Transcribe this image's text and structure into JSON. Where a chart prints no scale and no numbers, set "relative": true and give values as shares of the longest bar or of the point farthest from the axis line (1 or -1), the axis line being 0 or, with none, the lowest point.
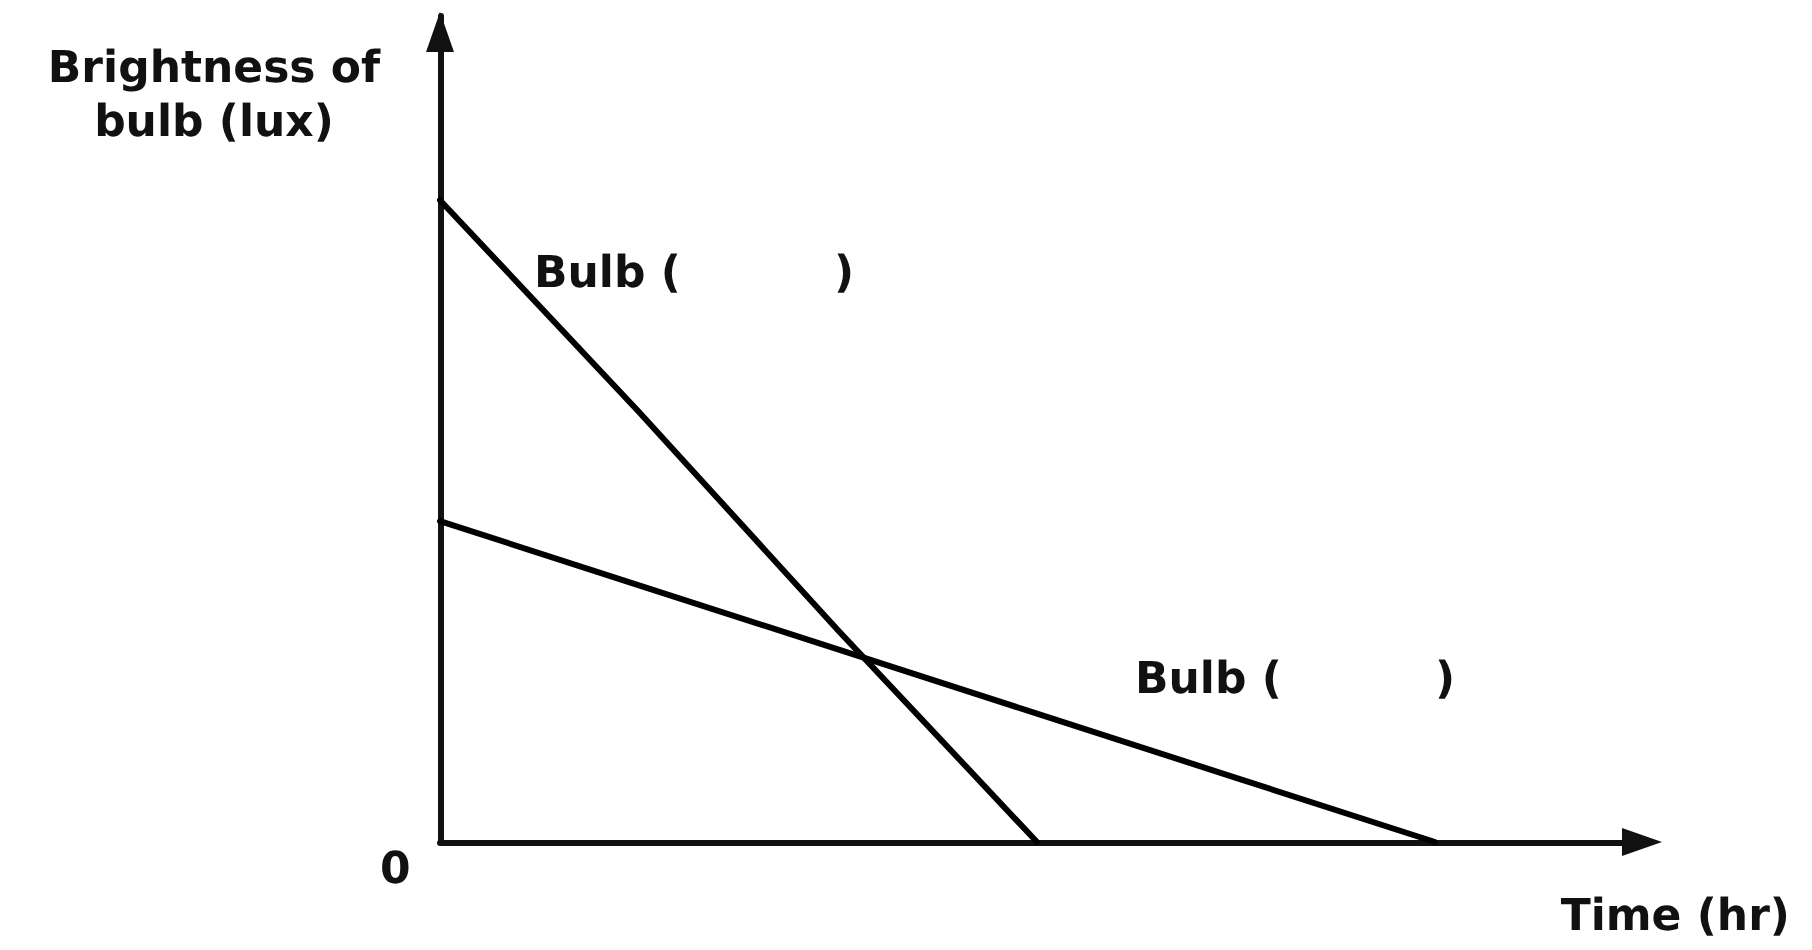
{
  "chart_data": {
    "type": "line",
    "xlabel": "Time (hr)",
    "ylabel": "Brightness of\nbulb (lux)",
    "categories": [
      null,
      null,
      null,
      null,
      null,
      null,
      null
    ],
    "series": [
      {
        "name": "Bulb (          )",
        "color": "#000000",
        "values": [
          1,
          0.67,
          0.33,
          0,
          null,
          null,
          null
        ]
      },
      {
        "name": "Bulb (          )",
        "color": "#000000",
        "values": [
          0.5,
          0.4,
          0.3,
          0.2,
          0.1,
          0,
          null
        ]
      }
    ],
    "relative": true,
    "grid": false,
    "marker": "none",
    "annotations": [
      "0"
    ]
  }
}
